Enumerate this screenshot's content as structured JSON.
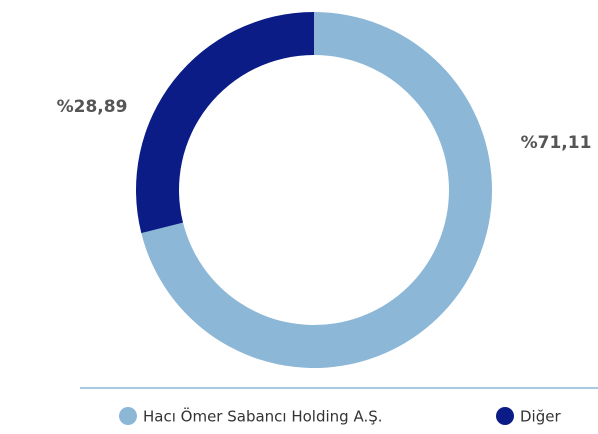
{
  "chart_data": {
    "type": "donut",
    "categories": [
      "Hacı Ömer Sabancı Holding A.Ş.",
      "Diğer"
    ],
    "values": [
      71.11,
      28.89
    ],
    "value_labels": [
      "%71,11",
      "%28,89"
    ],
    "colors": [
      "#8cb7d7",
      "#0b1c87"
    ]
  }
}
